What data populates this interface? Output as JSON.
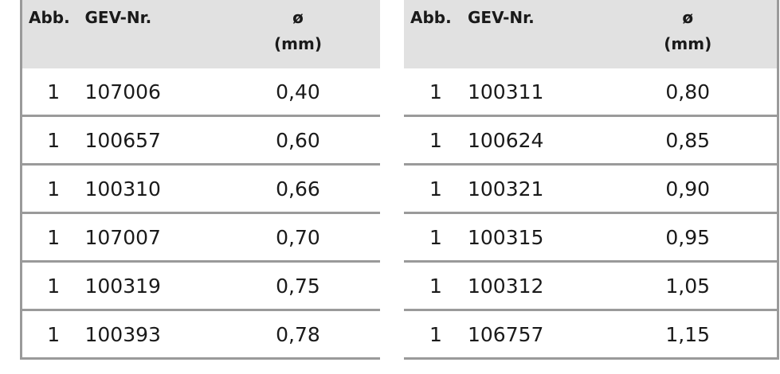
{
  "tables": [
    {
      "header": [
        "Abb.",
        "GEV-Nr.",
        "ø\n(mm)"
      ],
      "rows": [
        [
          "1",
          "107006",
          "0,40"
        ],
        [
          "1",
          "100657",
          "0,60"
        ],
        [
          "1",
          "100310",
          "0,66"
        ],
        [
          "1",
          "107007",
          "0,70"
        ],
        [
          "1",
          "100319",
          "0,75"
        ],
        [
          "1",
          "100393",
          "0,78"
        ]
      ]
    },
    {
      "header": [
        "Abb.",
        "GEV-Nr.",
        "ø\n(mm)"
      ],
      "rows": [
        [
          "1",
          "100311",
          "0,80"
        ],
        [
          "1",
          "100624",
          "0,85"
        ],
        [
          "1",
          "100321",
          "0,90"
        ],
        [
          "1",
          "100315",
          "0,95"
        ],
        [
          "1",
          "100312",
          "1,05"
        ],
        [
          "1",
          "106757",
          "1,15"
        ]
      ]
    }
  ]
}
